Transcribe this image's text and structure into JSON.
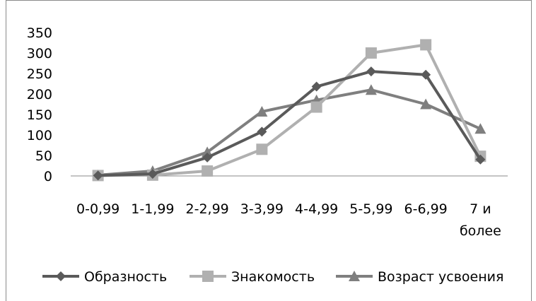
{
  "chart_data": {
    "type": "line",
    "categories": [
      "0-0,99",
      "1-1,99",
      "2-2,99",
      "3-3,99",
      "4-4,99",
      "5-5,99",
      "6-6,99",
      "7 и более"
    ],
    "category_lines": [
      [
        "0-0,99"
      ],
      [
        "1-1,99"
      ],
      [
        "2-2,99"
      ],
      [
        "3-3,99"
      ],
      [
        "4-4,99"
      ],
      [
        "5-5,99"
      ],
      [
        "6-6,99"
      ],
      [
        "7 и",
        "более"
      ]
    ],
    "ylim": [
      0,
      350
    ],
    "yticks": [
      "0",
      "50",
      "100",
      "150",
      "200",
      "250",
      "300",
      "350"
    ],
    "grid": false,
    "legend_position": "bottom",
    "series": [
      {
        "name": "Образность",
        "values": [
          1,
          5,
          45,
          108,
          218,
          255,
          247,
          40
        ],
        "marker": "diamond",
        "color": "#5a5a5a"
      },
      {
        "name": "Знакомость",
        "values": [
          1,
          2,
          12,
          65,
          168,
          300,
          320,
          48
        ],
        "marker": "square",
        "color": "#b0b0b0"
      },
      {
        "name": "Возраст усвоения",
        "values": [
          2,
          12,
          58,
          157,
          185,
          210,
          175,
          115
        ],
        "marker": "triangle",
        "color": "#7f7f7f"
      }
    ]
  }
}
